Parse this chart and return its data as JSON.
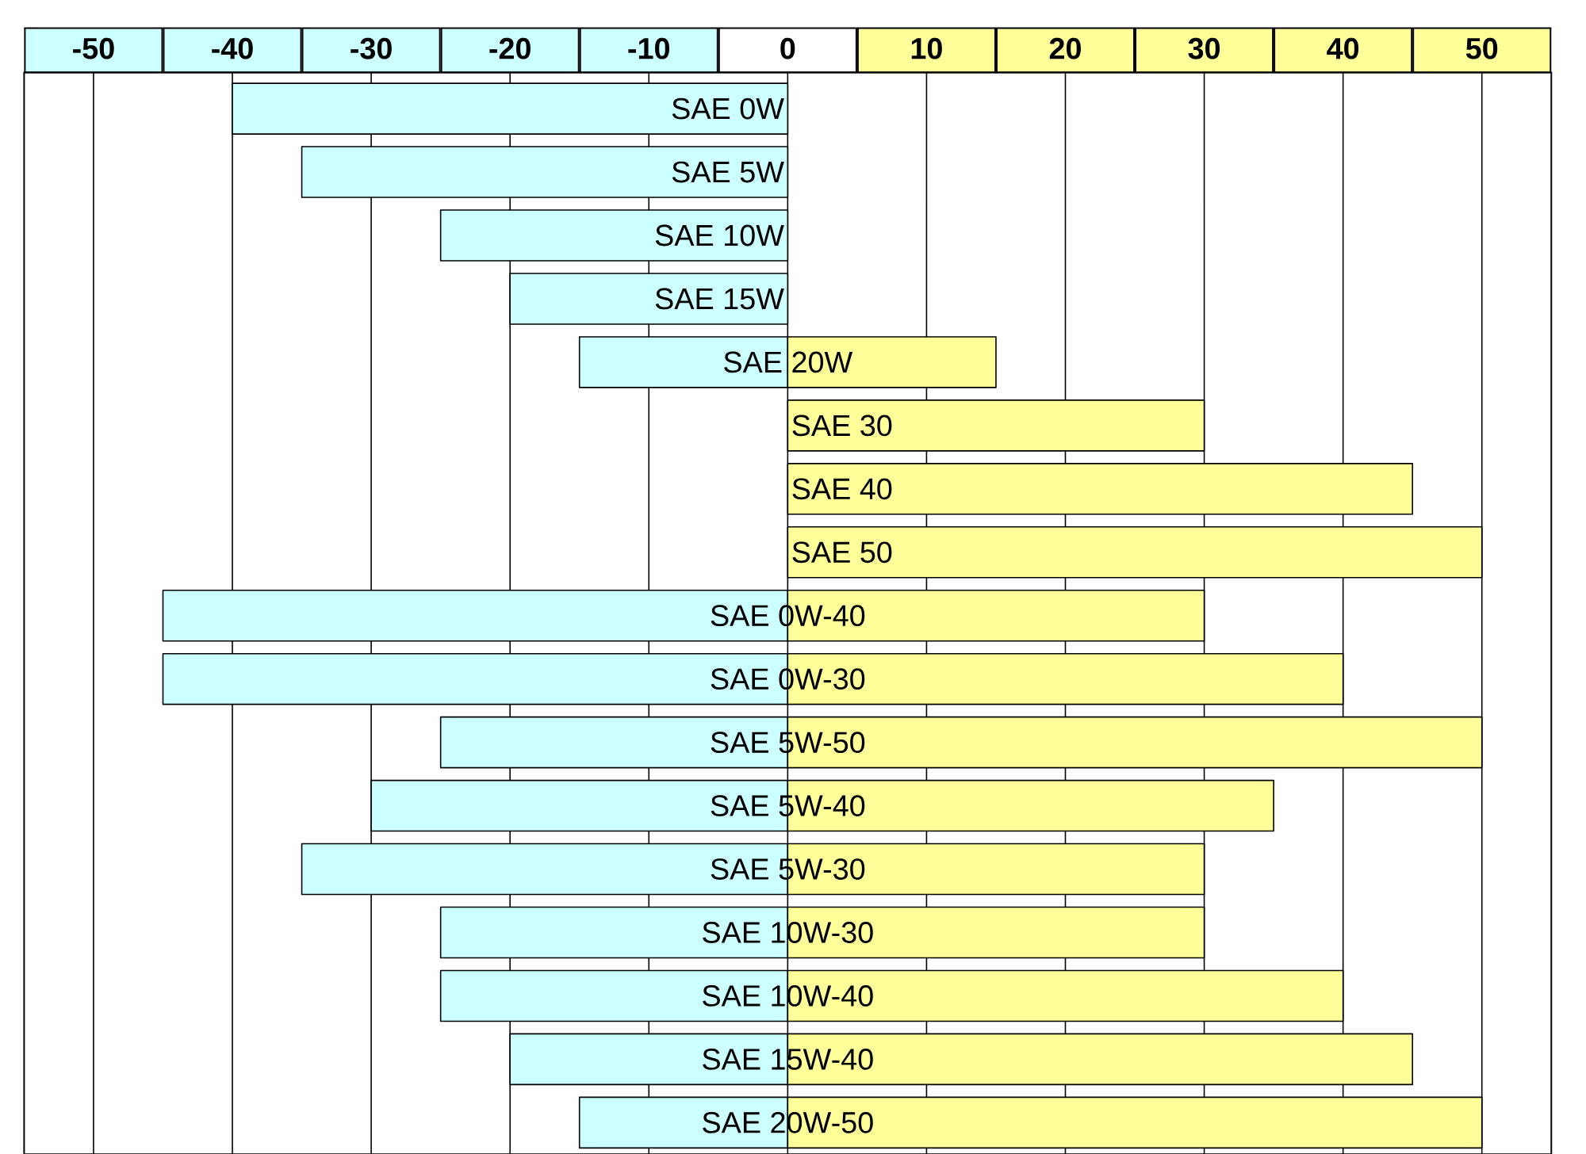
{
  "chart_data": {
    "type": "bar",
    "orientation": "horizontal",
    "stacked": true,
    "categories": [
      "SAE 0W",
      "SAE 5W",
      "SAE 10W",
      "SAE 15W",
      "SAE 20W",
      "SAE 30",
      "SAE 40",
      "SAE 50",
      "SAE 0W-40",
      "SAE 0W-30",
      "SAE 5W-50",
      "SAE 5W-40",
      "SAE 5W-30",
      "SAE 10W-30",
      "SAE 10W-40",
      "SAE 15W-40",
      "SAE 20W-50"
    ],
    "series": [
      {
        "color": "#ccffff",
        "values": [
          -40,
          -35,
          -25,
          -20,
          -15,
          null,
          null,
          null,
          -45,
          -45,
          -25,
          -30,
          -35,
          -25,
          -25,
          -20,
          -15
        ]
      },
      {
        "color": "#ffff99",
        "values": [
          null,
          null,
          null,
          null,
          15,
          30,
          45,
          50,
          30,
          40,
          50,
          35,
          30,
          30,
          40,
          45,
          50
        ]
      }
    ],
    "xlim": [
      -55,
      55
    ],
    "xticks": [
      -50,
      -40,
      -30,
      -20,
      -10,
      0,
      10,
      20,
      30,
      40,
      50
    ],
    "grid": "x"
  }
}
